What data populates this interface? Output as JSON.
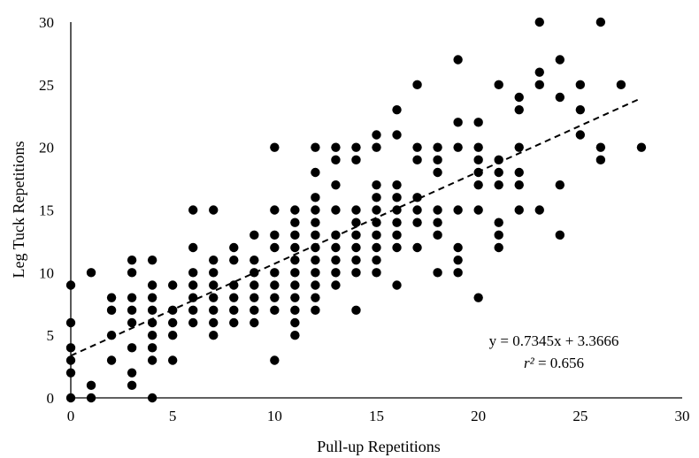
{
  "chart_data": {
    "type": "scatter",
    "xlabel": "Pull-up Repetitions",
    "ylabel": "Leg Tuck Repetitions",
    "xlim": [
      0,
      30
    ],
    "ylim": [
      0,
      30
    ],
    "x_ticks": [
      "0",
      "5",
      "10",
      "15",
      "20",
      "25",
      "30"
    ],
    "y_ticks": [
      "0",
      "5",
      "10",
      "15",
      "20",
      "25",
      "30"
    ],
    "grid": false,
    "legend": "none",
    "marker_color": "#000000",
    "trendline": {
      "slope": 0.7345,
      "intercept": 3.3666,
      "style": "dashed"
    },
    "equation": "y = 0.7345x + 3.3666",
    "r2_symbol": "r²",
    "r2_value": " = 0.656",
    "points": [
      [
        0,
        0
      ],
      [
        0,
        2
      ],
      [
        0,
        3
      ],
      [
        0,
        4
      ],
      [
        0,
        6
      ],
      [
        0,
        9
      ],
      [
        1,
        0
      ],
      [
        1,
        1
      ],
      [
        1,
        10
      ],
      [
        2,
        3
      ],
      [
        2,
        5
      ],
      [
        2,
        7
      ],
      [
        2,
        8
      ],
      [
        3,
        1
      ],
      [
        3,
        2
      ],
      [
        3,
        4
      ],
      [
        3,
        6
      ],
      [
        3,
        7
      ],
      [
        3,
        8
      ],
      [
        3,
        10
      ],
      [
        3,
        11
      ],
      [
        4,
        0
      ],
      [
        4,
        3
      ],
      [
        4,
        4
      ],
      [
        4,
        5
      ],
      [
        4,
        6
      ],
      [
        4,
        7
      ],
      [
        4,
        8
      ],
      [
        4,
        9
      ],
      [
        4,
        11
      ],
      [
        5,
        3
      ],
      [
        5,
        5
      ],
      [
        5,
        6
      ],
      [
        5,
        7
      ],
      [
        5,
        9
      ],
      [
        6,
        6
      ],
      [
        6,
        7
      ],
      [
        6,
        8
      ],
      [
        6,
        9
      ],
      [
        6,
        10
      ],
      [
        6,
        12
      ],
      [
        6,
        15
      ],
      [
        7,
        5
      ],
      [
        7,
        6
      ],
      [
        7,
        7
      ],
      [
        7,
        8
      ],
      [
        7,
        9
      ],
      [
        7,
        10
      ],
      [
        7,
        11
      ],
      [
        7,
        15
      ],
      [
        8,
        6
      ],
      [
        8,
        7
      ],
      [
        8,
        8
      ],
      [
        8,
        9
      ],
      [
        8,
        11
      ],
      [
        8,
        12
      ],
      [
        9,
        6
      ],
      [
        9,
        7
      ],
      [
        9,
        8
      ],
      [
        9,
        9
      ],
      [
        9,
        10
      ],
      [
        9,
        11
      ],
      [
        9,
        13
      ],
      [
        10,
        3
      ],
      [
        10,
        7
      ],
      [
        10,
        8
      ],
      [
        10,
        9
      ],
      [
        10,
        10
      ],
      [
        10,
        12
      ],
      [
        10,
        13
      ],
      [
        10,
        15
      ],
      [
        10,
        20
      ],
      [
        11,
        5
      ],
      [
        11,
        6
      ],
      [
        11,
        7
      ],
      [
        11,
        8
      ],
      [
        11,
        9
      ],
      [
        11,
        10
      ],
      [
        11,
        11
      ],
      [
        11,
        12
      ],
      [
        11,
        13
      ],
      [
        11,
        14
      ],
      [
        11,
        15
      ],
      [
        12,
        7
      ],
      [
        12,
        8
      ],
      [
        12,
        9
      ],
      [
        12,
        10
      ],
      [
        12,
        11
      ],
      [
        12,
        12
      ],
      [
        12,
        13
      ],
      [
        12,
        14
      ],
      [
        12,
        15
      ],
      [
        12,
        16
      ],
      [
        12,
        18
      ],
      [
        12,
        20
      ],
      [
        13,
        9
      ],
      [
        13,
        10
      ],
      [
        13,
        11
      ],
      [
        13,
        12
      ],
      [
        13,
        13
      ],
      [
        13,
        15
      ],
      [
        13,
        17
      ],
      [
        13,
        19
      ],
      [
        13,
        20
      ],
      [
        14,
        7
      ],
      [
        14,
        10
      ],
      [
        14,
        11
      ],
      [
        14,
        12
      ],
      [
        14,
        13
      ],
      [
        14,
        14
      ],
      [
        14,
        15
      ],
      [
        14,
        19
      ],
      [
        14,
        20
      ],
      [
        15,
        10
      ],
      [
        15,
        11
      ],
      [
        15,
        12
      ],
      [
        15,
        13
      ],
      [
        15,
        14
      ],
      [
        15,
        15
      ],
      [
        15,
        16
      ],
      [
        15,
        17
      ],
      [
        15,
        20
      ],
      [
        15,
        21
      ],
      [
        16,
        9
      ],
      [
        16,
        12
      ],
      [
        16,
        13
      ],
      [
        16,
        14
      ],
      [
        16,
        15
      ],
      [
        16,
        16
      ],
      [
        16,
        17
      ],
      [
        16,
        21
      ],
      [
        16,
        23
      ],
      [
        17,
        12
      ],
      [
        17,
        14
      ],
      [
        17,
        15
      ],
      [
        17,
        16
      ],
      [
        17,
        19
      ],
      [
        17,
        20
      ],
      [
        17,
        25
      ],
      [
        18,
        10
      ],
      [
        18,
        13
      ],
      [
        18,
        14
      ],
      [
        18,
        15
      ],
      [
        18,
        18
      ],
      [
        18,
        19
      ],
      [
        18,
        20
      ],
      [
        19,
        10
      ],
      [
        19,
        11
      ],
      [
        19,
        12
      ],
      [
        19,
        15
      ],
      [
        19,
        20
      ],
      [
        19,
        22
      ],
      [
        19,
        27
      ],
      [
        20,
        8
      ],
      [
        20,
        15
      ],
      [
        20,
        17
      ],
      [
        20,
        18
      ],
      [
        20,
        19
      ],
      [
        20,
        20
      ],
      [
        20,
        22
      ],
      [
        21,
        12
      ],
      [
        21,
        13
      ],
      [
        21,
        14
      ],
      [
        21,
        17
      ],
      [
        21,
        18
      ],
      [
        21,
        19
      ],
      [
        21,
        25
      ],
      [
        22,
        15
      ],
      [
        22,
        17
      ],
      [
        22,
        18
      ],
      [
        22,
        20
      ],
      [
        22,
        23
      ],
      [
        22,
        24
      ],
      [
        23,
        15
      ],
      [
        23,
        25
      ],
      [
        23,
        26
      ],
      [
        23,
        30
      ],
      [
        24,
        13
      ],
      [
        24,
        17
      ],
      [
        24,
        24
      ],
      [
        24,
        27
      ],
      [
        25,
        21
      ],
      [
        25,
        23
      ],
      [
        25,
        25
      ],
      [
        26,
        19
      ],
      [
        26,
        20
      ],
      [
        26,
        30
      ],
      [
        27,
        25
      ],
      [
        28,
        20
      ]
    ]
  }
}
